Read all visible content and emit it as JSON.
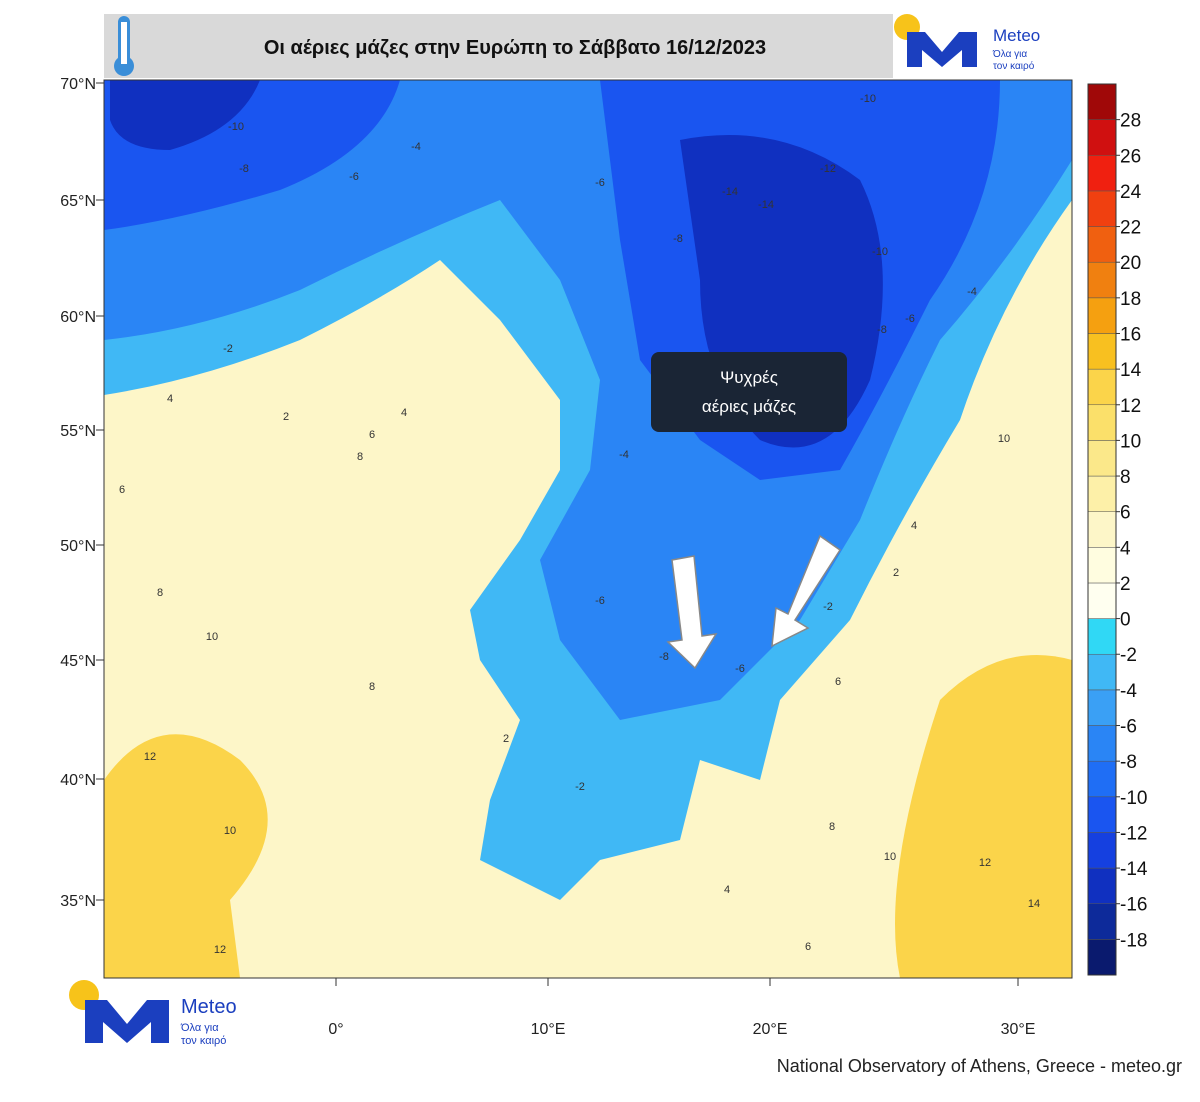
{
  "header": {
    "title": "Οι αέριες μάζες στην Ευρώπη το Σάββατο 16/12/2023"
  },
  "logo": {
    "brand": "Meteo",
    "tagline_1": "Όλα για",
    "tagline_2": "τον καιρό"
  },
  "map": {
    "lat_labels": [
      "70°N",
      "65°N",
      "60°N",
      "55°N",
      "50°N",
      "45°N",
      "40°N",
      "35°N"
    ],
    "lon_labels": [
      "0°",
      "10°E",
      "20°E",
      "30°E"
    ],
    "annotation": [
      "Ψυχρές",
      "αέριες μάζες"
    ],
    "contour_labels": [
      "-10",
      "-8",
      "-6",
      "-4",
      "-6",
      "-8",
      "-14",
      "-14",
      "-12",
      "-10",
      "-10",
      "-6",
      "-8",
      "-4",
      "-2",
      "4",
      "2",
      "6",
      "4",
      "6",
      "8",
      "10",
      "8",
      "12",
      "10",
      "12",
      "2",
      "-2",
      "-6",
      "-8",
      "-4",
      "-6",
      "-2",
      "2",
      "4",
      "6",
      "8",
      "10",
      "12",
      "14",
      "4",
      "6",
      "8",
      "10"
    ]
  },
  "colorbar": {
    "lim": [
      -20,
      30
    ],
    "ticks": [
      28,
      26,
      24,
      22,
      20,
      18,
      16,
      14,
      12,
      10,
      8,
      6,
      4,
      2,
      0,
      -2,
      -4,
      -6,
      -8,
      -10,
      -12,
      -14,
      -16,
      -18
    ],
    "colors": [
      "#0a1a6e",
      "#0d2a9a",
      "#1030c0",
      "#1540e0",
      "#1a55f0",
      "#1f6ef5",
      "#2a85f5",
      "#3aa0f5",
      "#40b8f5",
      "#30d8f5",
      "#fffff0",
      "#fffde0",
      "#fdf6c8",
      "#fdf0a8",
      "#fbe88a",
      "#fbe06a",
      "#fbd44a",
      "#f8c020",
      "#f5a010",
      "#f08010",
      "#f06010",
      "#f04010",
      "#f02010",
      "#d01010",
      "#a00808"
    ]
  },
  "footer": {
    "credit": "National Observatory of Athens, Greece - meteo.gr"
  }
}
